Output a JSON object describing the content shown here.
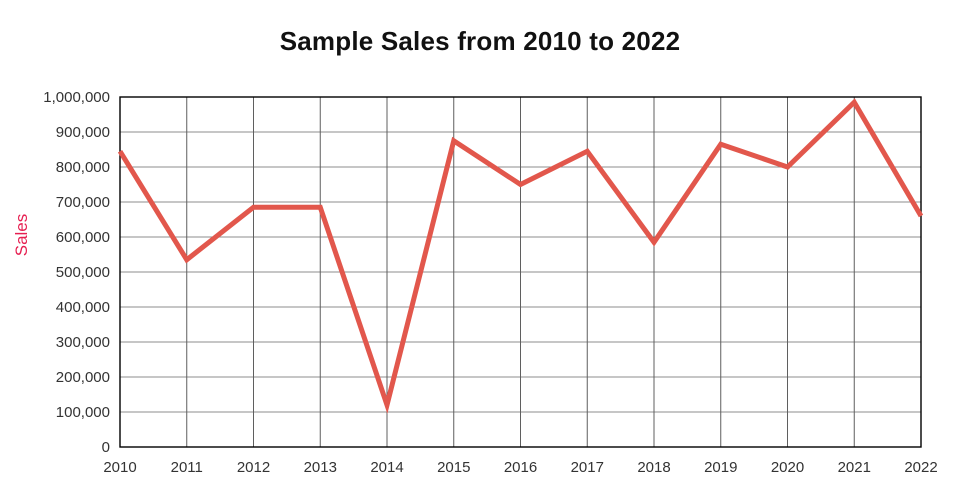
{
  "chart_data": {
    "type": "line",
    "title": "Sample Sales from 2010 to 2022",
    "xlabel": "",
    "ylabel": "Sales",
    "categories": [
      "2010",
      "2011",
      "2012",
      "2013",
      "2014",
      "2015",
      "2016",
      "2017",
      "2018",
      "2019",
      "2020",
      "2021",
      "2022"
    ],
    "values": [
      845000,
      535000,
      685000,
      685000,
      120000,
      875000,
      750000,
      845000,
      585000,
      865000,
      800000,
      985000,
      660000
    ],
    "ylim": [
      0,
      1000000
    ],
    "ytick_step": 100000,
    "ytick_labels": [
      "0",
      "100,000",
      "200,000",
      "300,000",
      "400,000",
      "500,000",
      "600,000",
      "700,000",
      "800,000",
      "900,000",
      "1,000,000"
    ],
    "grid": true,
    "legend_position": "none",
    "colors": {
      "line": "#e2574c",
      "y_axis_title": "#e61e50",
      "tick_label": "#333333",
      "h_gridline": "#8c8c8c",
      "v_gridline": "#5f5f5f",
      "plot_border": "#000000",
      "title": "#111111"
    }
  }
}
